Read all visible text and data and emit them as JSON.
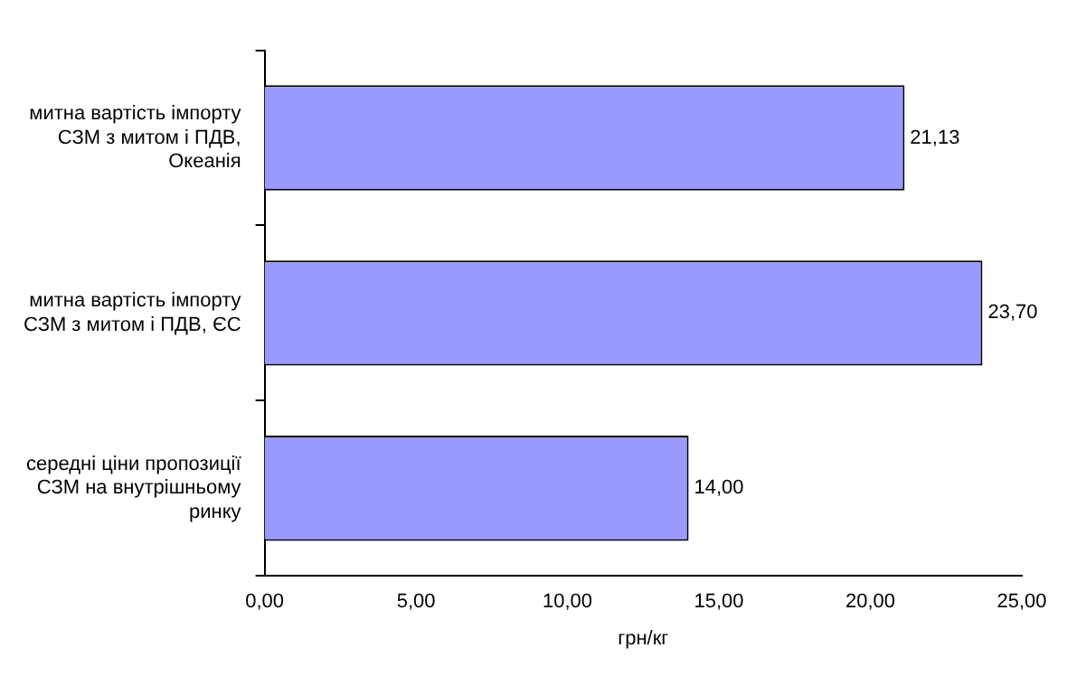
{
  "chart_data": {
    "type": "bar",
    "orientation": "horizontal",
    "categories": [
      "митна вартість імпорту СЗМ з митом і ПДВ, Океанія",
      "митна вартість імпорту СЗМ з митом і ПДВ, ЄС",
      "середні ціни пропозиції СЗМ на внутрішньому ринку"
    ],
    "values": [
      21.13,
      23.7,
      14.0
    ],
    "color": "#9999ff",
    "value_labels": [
      "21,13",
      "23,70",
      "14,00"
    ],
    "xlabel": "грн/кг",
    "xlim": [
      0,
      25
    ],
    "xticks": [
      {
        "value": 0,
        "label": "0,00"
      },
      {
        "value": 5,
        "label": "5,00"
      },
      {
        "value": 10,
        "label": "10,00"
      },
      {
        "value": 15,
        "label": "15,00"
      },
      {
        "value": 20,
        "label": "20,00"
      },
      {
        "value": 25,
        "label": "25,00"
      }
    ],
    "grid": false,
    "legend": false
  }
}
